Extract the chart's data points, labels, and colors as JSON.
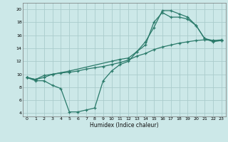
{
  "xlabel": "Humidex (Indice chaleur)",
  "bg_color": "#cce8e8",
  "grid_color": "#aacccc",
  "line_color": "#2a7a6a",
  "xlim": [
    -0.5,
    23.5
  ],
  "ylim": [
    3.5,
    21.0
  ],
  "xticks": [
    0,
    1,
    2,
    3,
    4,
    5,
    6,
    7,
    8,
    9,
    10,
    11,
    12,
    13,
    14,
    15,
    16,
    17,
    18,
    19,
    20,
    21,
    22,
    23
  ],
  "yticks": [
    4,
    6,
    8,
    10,
    12,
    14,
    16,
    18,
    20
  ],
  "line1_x": [
    0,
    1,
    2,
    3,
    4,
    5,
    6,
    7,
    8,
    9,
    10,
    11,
    12,
    13,
    14,
    15,
    16,
    17,
    18,
    19,
    20,
    21,
    22,
    23
  ],
  "line1_y": [
    9.5,
    9.0,
    9.0,
    8.3,
    7.8,
    4.2,
    4.2,
    4.5,
    4.8,
    9.0,
    10.5,
    11.5,
    12.0,
    13.5,
    15.0,
    17.2,
    19.8,
    19.8,
    19.3,
    18.8,
    17.5,
    15.5,
    15.2,
    15.2
  ],
  "line2_x": [
    0,
    1,
    2,
    3,
    4,
    5,
    6,
    7,
    8,
    9,
    10,
    11,
    12,
    13,
    14,
    15,
    16,
    17,
    18,
    19,
    20,
    21,
    22,
    23
  ],
  "line2_y": [
    9.5,
    9.2,
    9.5,
    10.0,
    10.2,
    10.3,
    10.5,
    10.8,
    11.0,
    11.2,
    11.5,
    11.8,
    12.2,
    12.8,
    13.2,
    13.8,
    14.2,
    14.5,
    14.8,
    15.0,
    15.2,
    15.3,
    15.2,
    15.3
  ],
  "line3_x": [
    0,
    1,
    2,
    3,
    5,
    10,
    11,
    12,
    13,
    14,
    15,
    16,
    17,
    18,
    19,
    20,
    21,
    22,
    23
  ],
  "line3_y": [
    9.5,
    9.2,
    9.8,
    10.0,
    10.5,
    12.0,
    12.3,
    12.5,
    13.5,
    14.5,
    18.0,
    19.5,
    18.8,
    18.8,
    18.5,
    17.5,
    15.5,
    15.0,
    15.2
  ]
}
